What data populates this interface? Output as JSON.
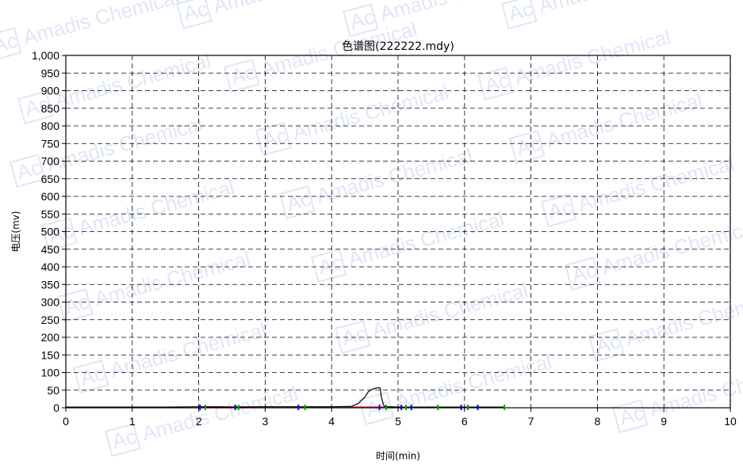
{
  "watermark": {
    "text": "Amadis Chemical",
    "logo": "Ac"
  },
  "chart_data": {
    "type": "line",
    "title": "色谱图(222222.mdy)",
    "xlabel": "时间(min)",
    "ylabel": "电压(mv)",
    "xlim": [
      0,
      10
    ],
    "ylim": [
      0,
      1000
    ],
    "x_ticks": [
      "0",
      "1",
      "2",
      "3",
      "4",
      "5",
      "6",
      "7",
      "8",
      "9",
      "10"
    ],
    "y_ticks": [
      "0",
      "50",
      "100",
      "150",
      "200",
      "250",
      "300",
      "350",
      "400",
      "450",
      "500",
      "550",
      "600",
      "650",
      "700",
      "750",
      "800",
      "850",
      "900",
      "950",
      "1,000"
    ],
    "grid": true,
    "series": [
      {
        "color": "#000000",
        "x": [
          0,
          0.5,
          1,
          1.5,
          2,
          2.5,
          3,
          3.5,
          4,
          4.3,
          4.4,
          4.5,
          4.55,
          4.6,
          4.65,
          4.7,
          4.73,
          4.75,
          4.78,
          4.8,
          4.85,
          4.9,
          5,
          5.5,
          6,
          6.6
        ],
        "y": [
          2,
          2,
          2,
          2,
          3,
          2,
          3,
          3,
          3,
          4,
          12,
          30,
          45,
          52,
          55,
          57,
          56,
          30,
          8,
          4,
          3,
          3,
          2,
          2,
          2,
          2
        ]
      }
    ],
    "baseline": {
      "color": "#cc0000",
      "x": [
        2.0,
        6.6
      ],
      "y": [
        3,
        2
      ]
    },
    "markers": [
      {
        "x": 2.02,
        "color": "#0000ff"
      },
      {
        "x": 2.55,
        "color": "#0000ff"
      },
      {
        "x": 3.5,
        "color": "#0000ff"
      },
      {
        "x": 4.72,
        "color": "#0000ff"
      },
      {
        "x": 5.05,
        "color": "#0000ff"
      },
      {
        "x": 5.2,
        "color": "#0000ff"
      },
      {
        "x": 5.95,
        "color": "#0000ff"
      },
      {
        "x": 6.2,
        "color": "#0000ff"
      },
      {
        "x": 2.1,
        "color": "#00aa00"
      },
      {
        "x": 2.6,
        "color": "#00aa00"
      },
      {
        "x": 3.6,
        "color": "#00aa00"
      },
      {
        "x": 4.82,
        "color": "#00aa00"
      },
      {
        "x": 5.12,
        "color": "#00aa00"
      },
      {
        "x": 5.6,
        "color": "#00aa00"
      },
      {
        "x": 6.05,
        "color": "#00aa00"
      },
      {
        "x": 6.6,
        "color": "#00aa00"
      }
    ]
  }
}
